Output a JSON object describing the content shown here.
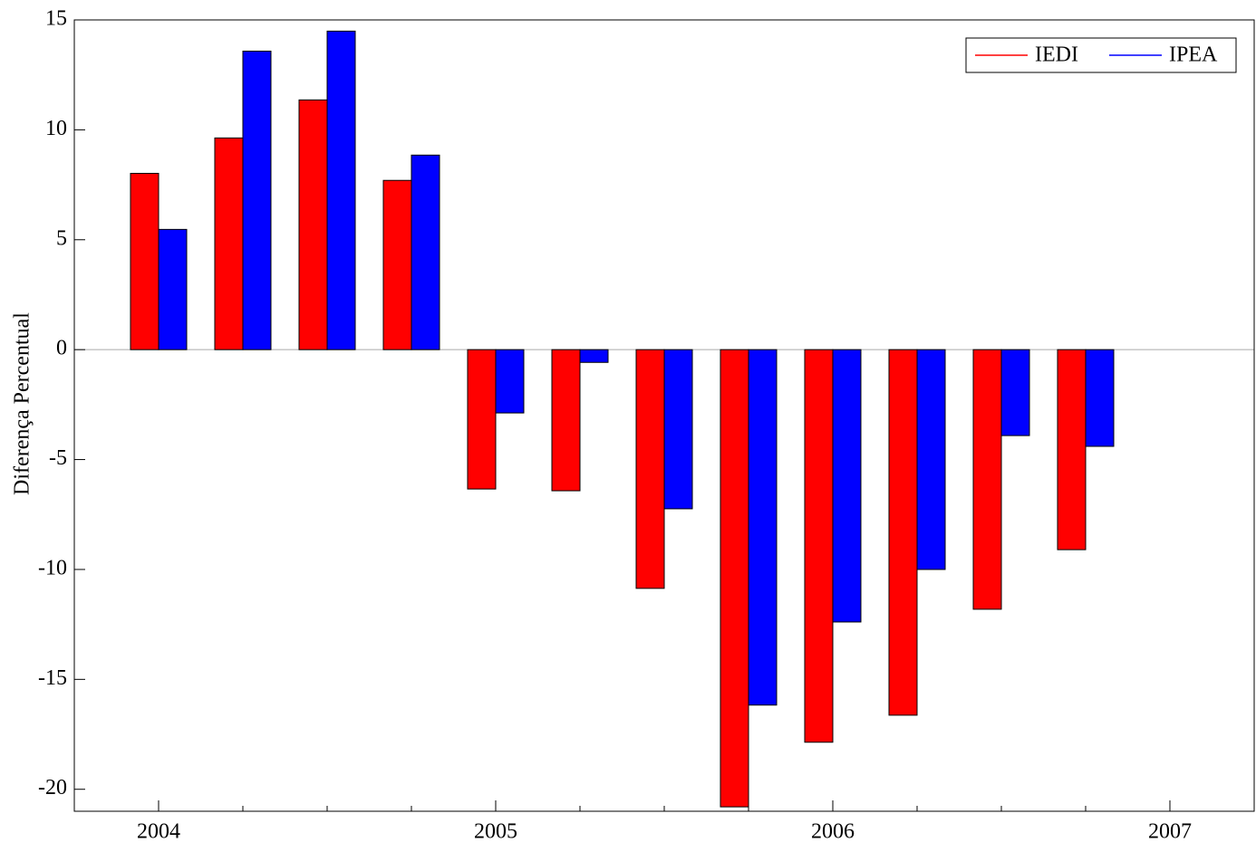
{
  "chart_data": {
    "type": "bar",
    "y_label": "Diferença Percentual",
    "x": [
      2004,
      2004.25,
      2004.5,
      2004.75,
      2005,
      2005.25,
      2005.5,
      2005.75,
      2006,
      2006.25,
      2006.5,
      2006.75
    ],
    "xlim": [
      2003.75,
      2007.25
    ],
    "xticks": [
      2004,
      2005,
      2006,
      2007
    ],
    "ylim": [
      -21,
      15
    ],
    "yticks": [
      15,
      10,
      5,
      0,
      -5,
      -10,
      -15,
      -20
    ],
    "legend": "top-right",
    "series": [
      {
        "name": "IEDI",
        "color": "#ff0000",
        "values": [
          8.02,
          9.63,
          11.36,
          7.7,
          -6.34,
          -6.42,
          -10.86,
          -20.8,
          -17.86,
          -16.63,
          -11.81,
          -9.1
        ]
      },
      {
        "name": "IPEA",
        "color": "#0000ff",
        "values": [
          5.47,
          13.58,
          14.49,
          8.85,
          -2.88,
          -0.58,
          -7.24,
          -16.17,
          -12.39,
          -10.0,
          -3.91,
          -4.4
        ]
      }
    ]
  }
}
